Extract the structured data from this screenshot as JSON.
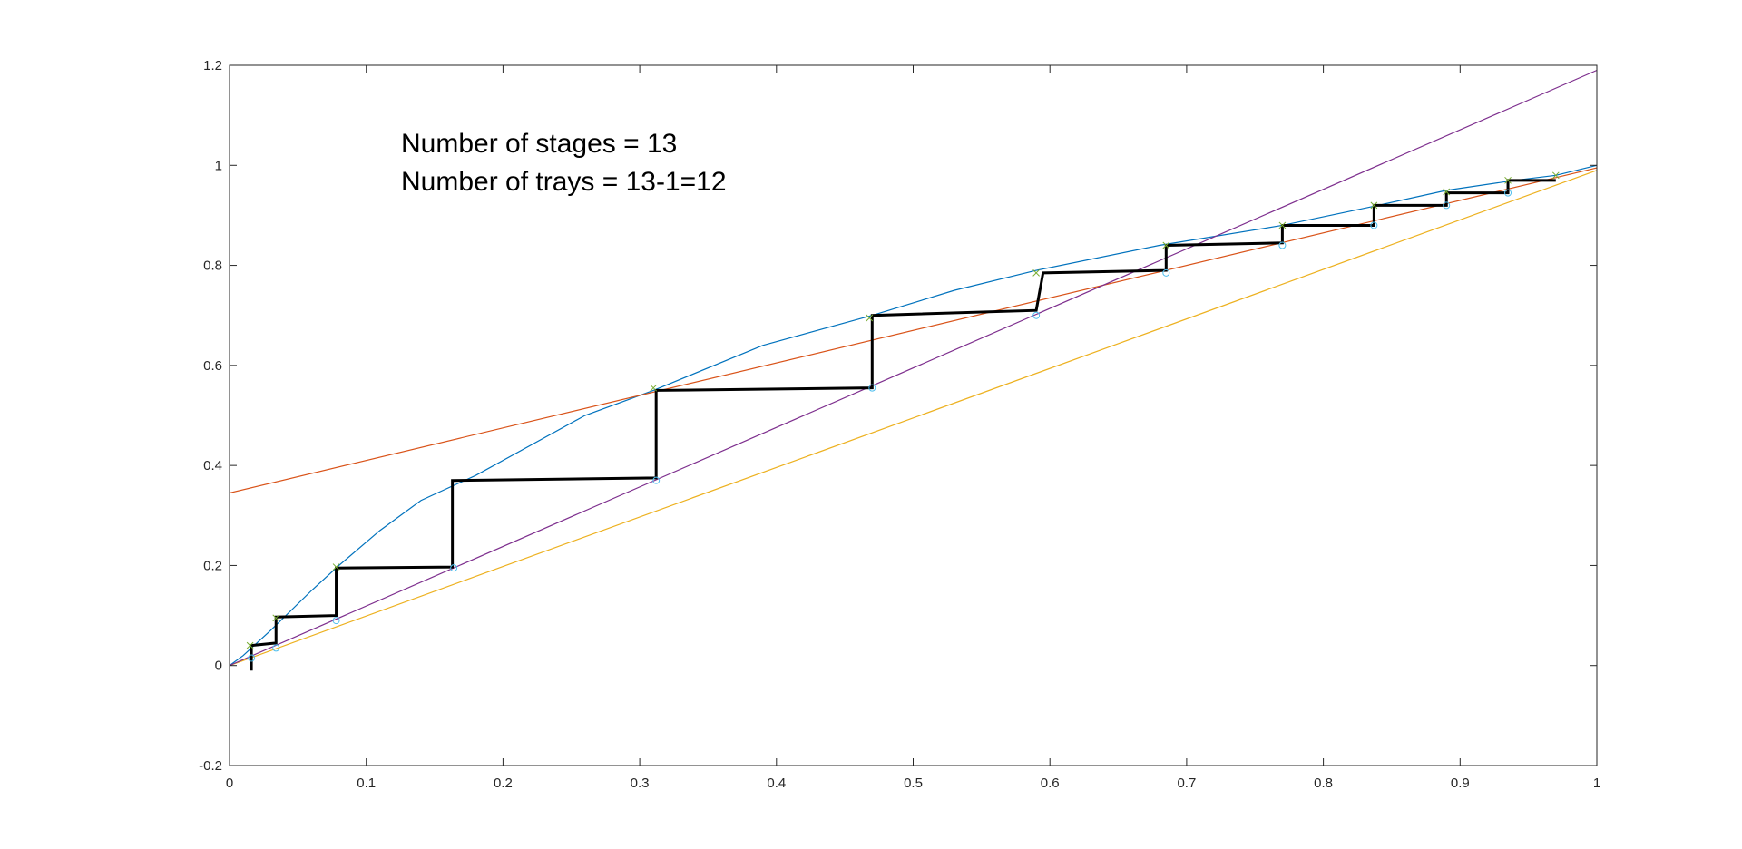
{
  "chart_data": {
    "type": "line",
    "title": "",
    "xlabel": "",
    "ylabel": "",
    "xlim": [
      0,
      1
    ],
    "ylim": [
      -0.2,
      1.2
    ],
    "grid": false,
    "legend": "none",
    "x_ticks": [
      "0",
      "0.1",
      "0.2",
      "0.3",
      "0.4",
      "0.5",
      "0.6",
      "0.7",
      "0.8",
      "0.9",
      "1"
    ],
    "x_tick_values": [
      0,
      0.1,
      0.2,
      0.3,
      0.4,
      0.5,
      0.6,
      0.7,
      0.8,
      0.9,
      1
    ],
    "y_ticks": [
      "-0.2",
      "0",
      "0.2",
      "0.4",
      "0.6",
      "0.8",
      "1",
      "1.2"
    ],
    "y_tick_values": [
      -0.2,
      0,
      0.2,
      0.4,
      0.6,
      0.8,
      1,
      1.2
    ],
    "annotations": [
      "Number of stages = 13",
      "Number of trays = 13-1=12"
    ],
    "series": [
      {
        "color": "#0072BD",
        "x": [
          0,
          0.01,
          0.03,
          0.06,
          0.08,
          0.11,
          0.14,
          0.18,
          0.26,
          0.31,
          0.39,
          0.47,
          0.53,
          0.59,
          0.68,
          0.77,
          0.84,
          0.89,
          0.94,
          0.97,
          1
        ],
        "y": [
          0,
          0.02,
          0.07,
          0.15,
          0.2,
          0.27,
          0.33,
          0.38,
          0.5,
          0.55,
          0.64,
          0.7,
          0.75,
          0.79,
          0.84,
          0.88,
          0.92,
          0.95,
          0.97,
          0.98,
          1
        ]
      },
      {
        "color": "#D95319",
        "x": [
          0,
          1
        ],
        "y": [
          0.345,
          0.995
        ]
      },
      {
        "color": "#EDB120",
        "x": [
          0,
          1
        ],
        "y": [
          0,
          0.99
        ]
      },
      {
        "color": "#7E2F8E",
        "x": [
          0,
          1
        ],
        "y": [
          0,
          1.19
        ]
      },
      {
        "color": "#000000",
        "x": [
          0.97,
          0.97,
          0.935,
          0.935,
          0.89,
          0.89,
          0.837,
          0.837,
          0.77,
          0.77,
          0.685,
          0.685,
          0.595,
          0.59,
          0.47,
          0.47,
          0.312,
          0.312,
          0.163,
          0.163,
          0.078,
          0.078,
          0.034,
          0.034,
          0.016,
          0.016
        ],
        "y": [
          0.97,
          0.97,
          0.97,
          0.945,
          0.945,
          0.92,
          0.92,
          0.88,
          0.88,
          0.845,
          0.84,
          0.79,
          0.785,
          0.71,
          0.7,
          0.555,
          0.55,
          0.375,
          0.37,
          0.197,
          0.195,
          0.1,
          0.097,
          0.045,
          0.04,
          -0.01
        ]
      }
    ],
    "markers_x": {
      "color": "#77AC30",
      "x": [
        0.015,
        0.034,
        0.078,
        0.31,
        0.468,
        0.59,
        0.685,
        0.77,
        0.837,
        0.89,
        0.935,
        0.97
      ],
      "y": [
        0.04,
        0.095,
        0.197,
        0.555,
        0.695,
        0.785,
        0.84,
        0.88,
        0.92,
        0.947,
        0.97,
        0.98
      ]
    },
    "markers_o": {
      "color": "#4DBEEE",
      "x": [
        0.016,
        0.034,
        0.078,
        0.164,
        0.312,
        0.47,
        0.59,
        0.685,
        0.77,
        0.837,
        0.89,
        0.935
      ],
      "y": [
        0.015,
        0.035,
        0.09,
        0.195,
        0.37,
        0.555,
        0.7,
        0.785,
        0.84,
        0.88,
        0.92,
        0.945
      ]
    }
  }
}
